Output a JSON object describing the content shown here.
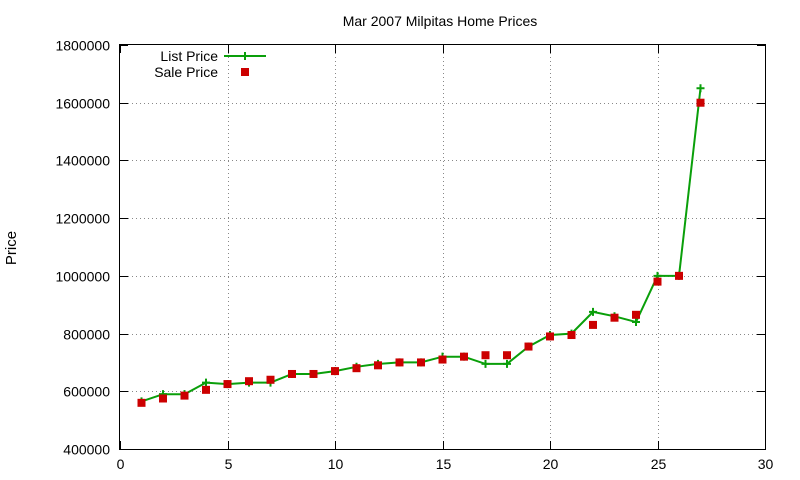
{
  "chart_data": {
    "type": "line",
    "title": "Mar 2007 Milpitas Home Prices",
    "xlabel": "",
    "ylabel": "Price",
    "xlim": [
      0,
      30
    ],
    "ylim": [
      400000,
      1800000
    ],
    "x_ticks": [
      "0",
      "5",
      "10",
      "15",
      "20",
      "25",
      "30"
    ],
    "y_ticks": [
      "400000",
      "600000",
      "800000",
      "1000000",
      "1200000",
      "1400000",
      "1600000",
      "1800000"
    ],
    "grid": true,
    "legend_position": "top-left",
    "series": [
      {
        "name": "List Price",
        "style": "line-with-plus-markers",
        "color": "#0a9f0a",
        "points": [
          [
            1,
            565000
          ],
          [
            2,
            590000
          ],
          [
            3,
            590000
          ],
          [
            4,
            630000
          ],
          [
            5,
            625000
          ],
          [
            6,
            630000
          ],
          [
            7,
            630000
          ],
          [
            8,
            660000
          ],
          [
            9,
            660000
          ],
          [
            10,
            670000
          ],
          [
            11,
            685000
          ],
          [
            12,
            695000
          ],
          [
            13,
            700000
          ],
          [
            14,
            700000
          ],
          [
            15,
            720000
          ],
          [
            16,
            720000
          ],
          [
            17,
            695000
          ],
          [
            18,
            695000
          ],
          [
            19,
            755000
          ],
          [
            20,
            795000
          ],
          [
            21,
            800000
          ],
          [
            22,
            875000
          ],
          [
            23,
            860000
          ],
          [
            24,
            840000
          ],
          [
            25,
            1000000
          ],
          [
            26,
            1000000
          ],
          [
            27,
            1650000
          ]
        ]
      },
      {
        "name": "Sale Price",
        "style": "square-markers",
        "color": "#cc0000",
        "points": [
          [
            1,
            560000
          ],
          [
            2,
            575000
          ],
          [
            3,
            585000
          ],
          [
            4,
            605000
          ],
          [
            5,
            625000
          ],
          [
            6,
            635000
          ],
          [
            7,
            640000
          ],
          [
            8,
            660000
          ],
          [
            9,
            660000
          ],
          [
            10,
            670000
          ],
          [
            11,
            680000
          ],
          [
            12,
            690000
          ],
          [
            13,
            700000
          ],
          [
            14,
            700000
          ],
          [
            15,
            710000
          ],
          [
            16,
            720000
          ],
          [
            17,
            725000
          ],
          [
            18,
            725000
          ],
          [
            19,
            755000
          ],
          [
            20,
            790000
          ],
          [
            21,
            795000
          ],
          [
            22,
            830000
          ],
          [
            23,
            855000
          ],
          [
            24,
            865000
          ],
          [
            25,
            980000
          ],
          [
            26,
            1000000
          ],
          [
            27,
            1600000
          ]
        ]
      }
    ]
  }
}
